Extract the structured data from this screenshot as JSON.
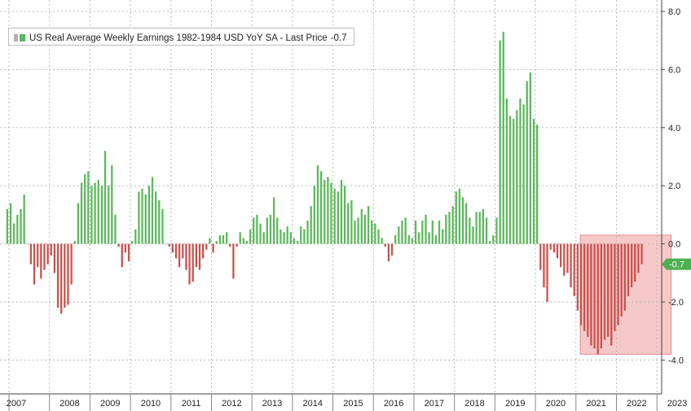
{
  "legend": {
    "label": "US Real Average Weekly Earnings 1982-1984 USD YoY SA - Last Price",
    "last_value": "-0.7"
  },
  "colors": {
    "positive": "#5cb85c",
    "negative": "#c9514d",
    "highlight": "#f4c0c0",
    "grid": "#b8b8b8",
    "last_badge": "#4caf50"
  },
  "chart_data": {
    "type": "bar",
    "title": "",
    "xlabel": "",
    "ylabel": "",
    "ylim": [
      -4.0,
      8.0
    ],
    "yticks": [
      "8.0",
      "6.0",
      "4.0",
      "2.0",
      "0.0",
      "-2.0",
      "-4.0"
    ],
    "ytick_values": [
      8,
      6,
      4,
      2,
      0,
      -2,
      -4
    ],
    "years": [
      "2007",
      "2008",
      "2009",
      "2010",
      "2011",
      "2012",
      "2013",
      "2014",
      "2015",
      "2016",
      "2017",
      "2018",
      "2019",
      "2020",
      "2021",
      "2022",
      "2023"
    ],
    "grid": true,
    "legend_position": "top-left",
    "last_price": -0.7,
    "highlight_region": {
      "x_start": "2021-03",
      "x_end": "2023-04",
      "y_low": -3.8,
      "y_high": 0.3
    },
    "series": [
      {
        "start": "2006-12",
        "frequency": "monthly",
        "values": [
          1.2,
          1.4,
          0.7,
          1.0,
          1.2,
          1.7,
          0.0,
          -0.7,
          -1.4,
          -0.8,
          -1.2,
          -0.9,
          -0.7,
          -0.4,
          -1.0,
          -2.2,
          -2.4,
          -2.2,
          -2.1,
          -1.4,
          0.1,
          1.4,
          2.1,
          2.4,
          2.5,
          2.0,
          2.1,
          2.2,
          2.0,
          3.2,
          2.0,
          2.7,
          1.0,
          -0.1,
          -0.8,
          -0.3,
          -0.6,
          0.1,
          0.5,
          1.8,
          1.9,
          1.7,
          2.0,
          2.3,
          1.8,
          1.5,
          1.2,
          0.0,
          -0.1,
          -0.3,
          -0.5,
          -0.8,
          -0.5,
          -0.9,
          -1.4,
          -1.3,
          -0.8,
          -0.9,
          -0.5,
          -0.2,
          0.2,
          -0.3,
          0.1,
          0.3,
          0.3,
          0.4,
          -0.1,
          -1.2,
          -0.1,
          0.4,
          0.2,
          0.1,
          0.5,
          0.9,
          1.0,
          0.7,
          0.4,
          0.9,
          1.0,
          1.6,
          0.9,
          0.5,
          0.4,
          0.6,
          0.4,
          0.2,
          0.1,
          0.6,
          0.5,
          0.8,
          1.3,
          2.0,
          2.7,
          2.5,
          2.2,
          2.3,
          2.1,
          1.9,
          1.8,
          2.2,
          2.0,
          1.4,
          1.5,
          0.8,
          0.9,
          1.2,
          1.0,
          1.3,
          0.8,
          0.7,
          0.5,
          0.2,
          -0.1,
          -0.6,
          -0.4,
          0.3,
          0.6,
          0.8,
          0.9,
          0.3,
          0.2,
          0.8,
          0.4,
          0.8,
          1.0,
          0.4,
          0.8,
          0.3,
          0.8,
          0.5,
          1.0,
          1.1,
          1.3,
          1.8,
          1.9,
          1.6,
          1.4,
          0.9,
          0.6,
          1.1,
          1.1,
          1.2,
          0.9,
          0.1,
          0.3,
          0.9,
          7.0,
          7.3,
          5.0,
          4.4,
          4.3,
          4.6,
          5.0,
          4.8,
          5.6,
          5.9,
          4.3,
          4.1,
          -0.9,
          -1.5,
          -2.0,
          -0.2,
          -0.3,
          -0.5,
          -0.8,
          -1.1,
          -1.0,
          -1.5,
          -1.8,
          -2.3,
          -2.8,
          -3.0,
          -3.2,
          -3.5,
          -3.6,
          -3.8,
          -3.6,
          -3.3,
          -3.2,
          -3.5,
          -3.0,
          -2.8,
          -2.5,
          -2.3,
          -1.8,
          -1.5,
          -1.3,
          -1.0,
          -0.7
        ]
      }
    ]
  }
}
